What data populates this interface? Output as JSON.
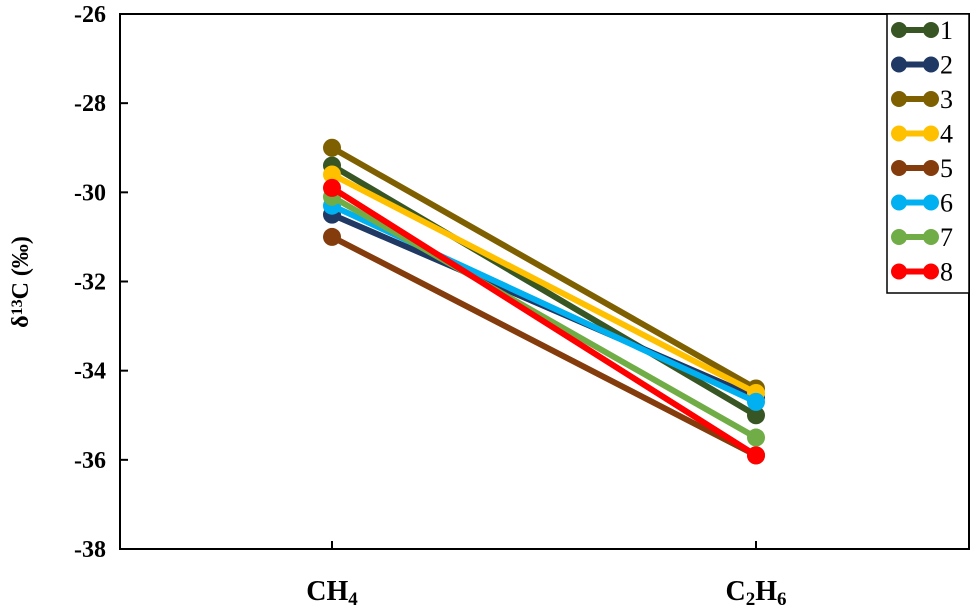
{
  "chart_data": {
    "type": "line",
    "title": "",
    "xlabel": "",
    "ylabel": "δ13C (‰)",
    "ylabel_parts": {
      "main": "δ",
      "sup": "13",
      "rest": "C (‰)"
    },
    "categories": [
      "CH4",
      "C2H6"
    ],
    "category_parts": [
      [
        {
          "t": "CH"
        },
        {
          "t": "4",
          "sub": true
        }
      ],
      [
        {
          "t": "C"
        },
        {
          "t": "2",
          "sub": true
        },
        {
          "t": "H"
        },
        {
          "t": "6",
          "sub": true
        }
      ]
    ],
    "ylim": [
      -38,
      -26
    ],
    "yticks": [
      -26,
      -28,
      -30,
      -32,
      -34,
      -36,
      -38
    ],
    "grid": false,
    "legend_position": "top-right",
    "series": [
      {
        "name": "1",
        "color": "#375623",
        "values": [
          -29.4,
          -35.0
        ]
      },
      {
        "name": "2",
        "color": "#1F3864",
        "values": [
          -30.5,
          -34.6
        ]
      },
      {
        "name": "3",
        "color": "#7F6000",
        "values": [
          -29.0,
          -34.4
        ]
      },
      {
        "name": "4",
        "color": "#FFC000",
        "values": [
          -29.6,
          -34.5
        ]
      },
      {
        "name": "5",
        "color": "#843C0C",
        "values": [
          -31.0,
          -35.9
        ]
      },
      {
        "name": "6",
        "color": "#00B0F0",
        "values": [
          -30.3,
          -34.7
        ]
      },
      {
        "name": "7",
        "color": "#70AD47",
        "values": [
          -30.1,
          -35.5
        ]
      },
      {
        "name": "8",
        "color": "#FF0000",
        "values": [
          -29.9,
          -35.9
        ]
      }
    ]
  }
}
